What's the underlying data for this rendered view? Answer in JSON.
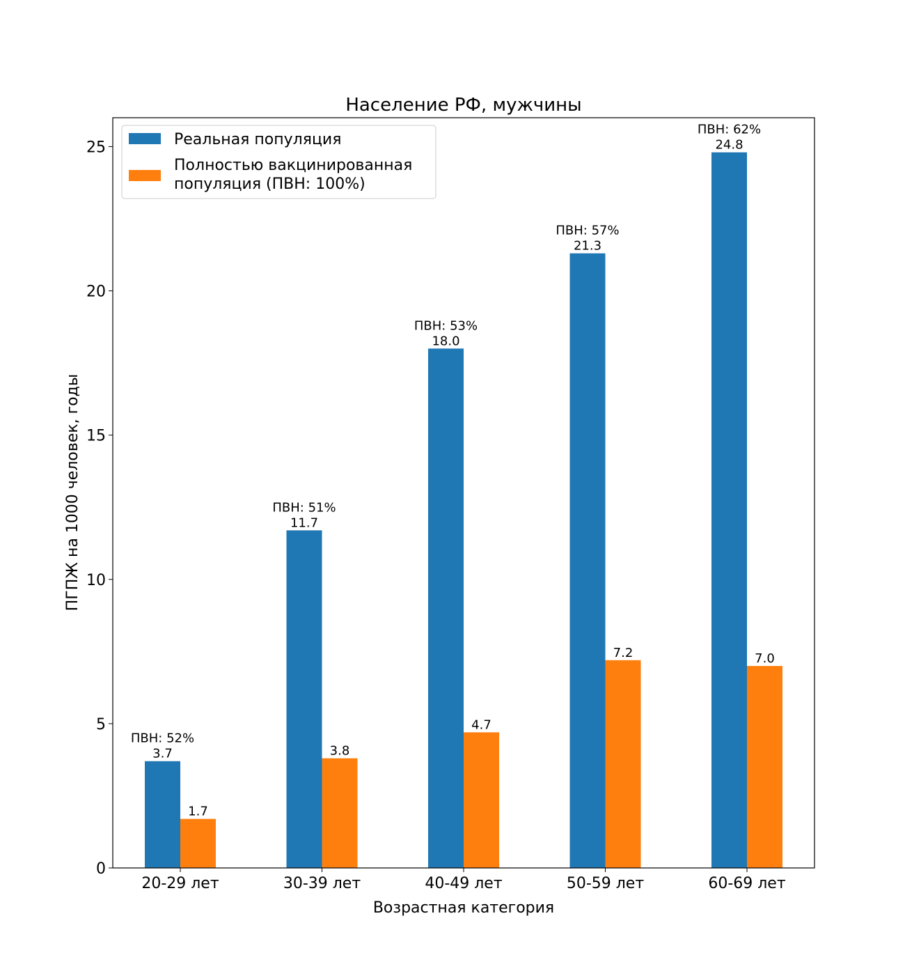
{
  "chart_data": {
    "type": "bar",
    "title": "Население РФ, мужчины",
    "xlabel": "Возрастная категория",
    "ylabel": "ПГПЖ на 1000 человек, годы",
    "ylim": [
      0,
      26
    ],
    "yticks": [
      0,
      5,
      10,
      15,
      20,
      25
    ],
    "categories": [
      "20-29 лет",
      "30-39 лет",
      "40-49 лет",
      "50-59 лет",
      "60-69 лет"
    ],
    "series": [
      {
        "name": "Реальная популяция",
        "color": "#1f77b4",
        "values": [
          3.7,
          11.7,
          18.0,
          21.3,
          24.8
        ],
        "value_labels": [
          "3.7",
          "11.7",
          "18.0",
          "21.3",
          "24.8"
        ],
        "annotations": [
          "ПВН: 52%",
          "ПВН: 51%",
          "ПВН: 53%",
          "ПВН: 57%",
          "ПВН: 62%"
        ]
      },
      {
        "name": "Полностью вакцинированная популяция (ПВН: 100%)",
        "legend_lines": [
          "Полностью вакцинированная",
          "популяция (ПВН: 100%)"
        ],
        "color": "#ff7f0e",
        "values": [
          1.7,
          3.8,
          4.7,
          7.2,
          7.0
        ],
        "value_labels": [
          "1.7",
          "3.8",
          "4.7",
          "7.2",
          "7.0"
        ]
      }
    ],
    "legend_position": "upper-left",
    "grid": false
  }
}
